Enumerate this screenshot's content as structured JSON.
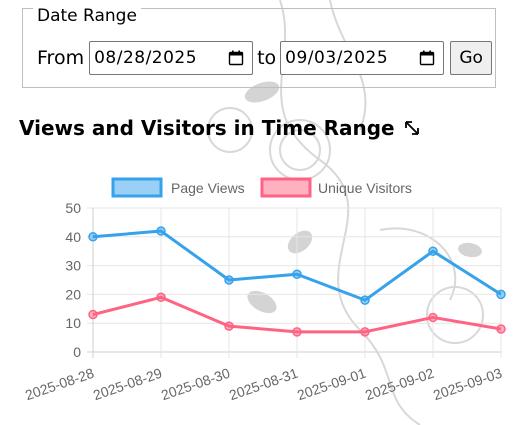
{
  "date_range": {
    "legend": "Date Range",
    "from_label": "From",
    "from_value": "08/28/2025",
    "to_label": "to",
    "to_value": "09/03/2025",
    "go_label": "Go"
  },
  "chart_section": {
    "title": "Views and Visitors in Time Range",
    "expand_icon": "expand-diagonal-icon"
  },
  "colors": {
    "page_views": "#36a2eb",
    "unique_visitors": "#ff6384"
  },
  "chart_data": {
    "type": "line",
    "title": "",
    "xlabel": "",
    "ylabel": "",
    "categories": [
      "2025-08-28",
      "2025-08-29",
      "2025-08-30",
      "2025-08-31",
      "2025-09-01",
      "2025-09-02",
      "2025-09-03"
    ],
    "series": [
      {
        "name": "Page Views",
        "values": [
          40,
          42,
          25,
          27,
          18,
          35,
          20
        ]
      },
      {
        "name": "Unique Visitors",
        "values": [
          13,
          19,
          9,
          7,
          7,
          12,
          8
        ]
      }
    ],
    "ylim": [
      0,
      50
    ],
    "yticks": [
      0,
      10,
      20,
      30,
      40,
      50
    ],
    "grid": true,
    "legend_position": "top"
  }
}
